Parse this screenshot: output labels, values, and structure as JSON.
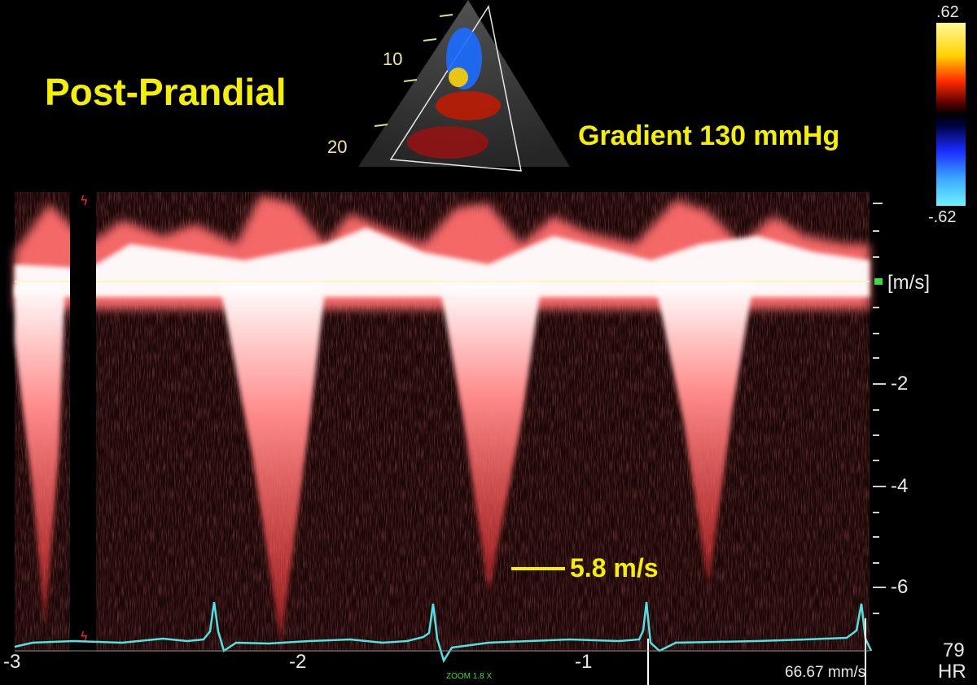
{
  "annotations": {
    "condition": "Post-Prandial",
    "gradient": "Gradient 130 mmHg",
    "peak_velocity": "5.8 m/s"
  },
  "velocity_axis": {
    "unit": "[m/s]",
    "ticks": [
      {
        "label": "-2",
        "value": -2
      },
      {
        "label": "-4",
        "value": -4
      },
      {
        "label": "-6",
        "value": -6
      }
    ]
  },
  "time_axis": {
    "ticks": [
      {
        "label": "-3",
        "value": -3
      },
      {
        "label": "-2",
        "value": -2
      },
      {
        "label": "-1",
        "value": -1
      }
    ]
  },
  "sweep_speed": "66.67 mm/s",
  "zoom": "ZOOM 1.8 X",
  "heart_rate": {
    "value": "79",
    "label": "HR"
  },
  "color_scale": {
    "top": ".62",
    "bottom": "-.62"
  },
  "depth_markers": {
    "upper": "10",
    "lower": "20"
  },
  "colors": {
    "annotation": "#f4f000",
    "doppler": "#ff5a5a",
    "ecg": "#4fe3e3",
    "axis": "#e8e8e8"
  }
}
